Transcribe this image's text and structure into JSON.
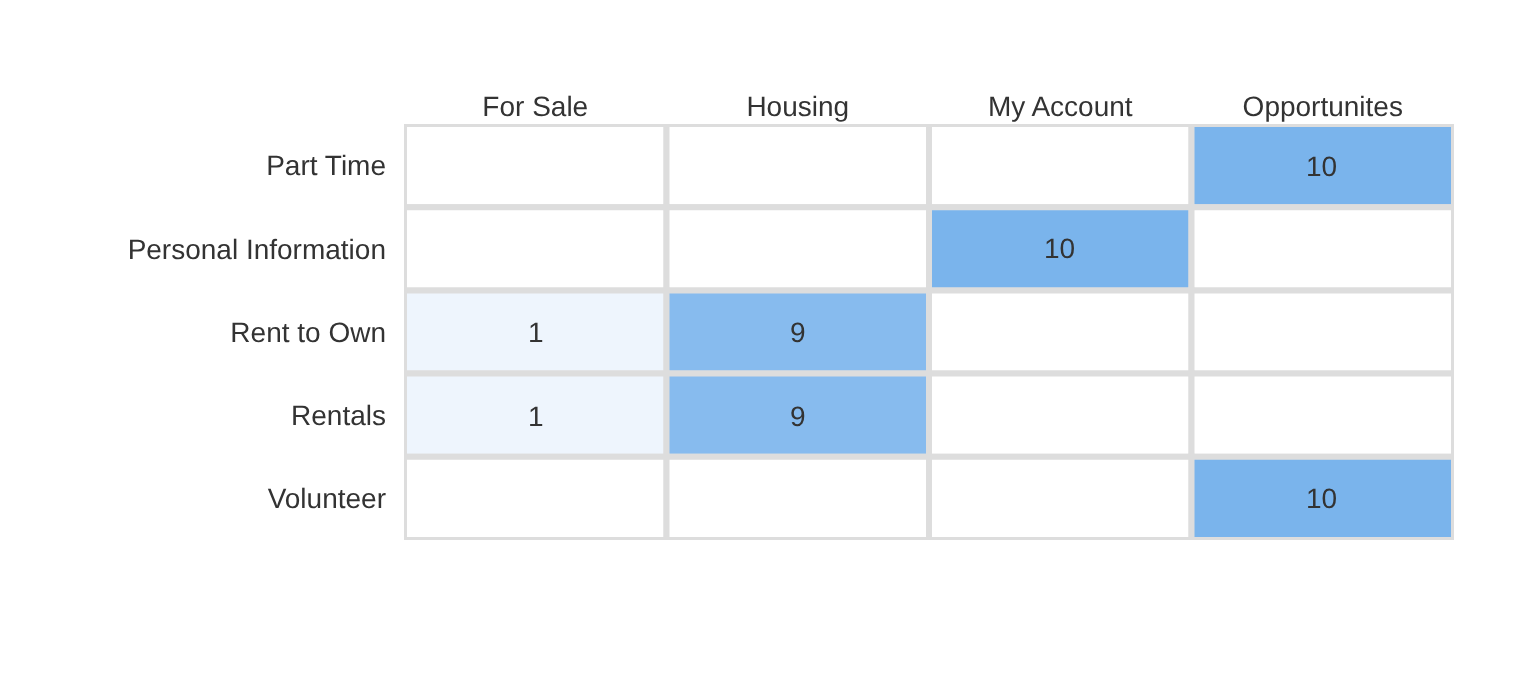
{
  "chart_data": {
    "type": "heatmap",
    "categories": [
      "For Sale",
      "Housing",
      "My Account",
      "Opportunites"
    ],
    "y_categories": [
      "Part Time",
      "Personal Information",
      "Rent to Own",
      "Rentals",
      "Volunteer"
    ],
    "cells": [
      [
        null,
        null,
        null,
        10
      ],
      [
        null,
        null,
        10,
        null
      ],
      [
        1,
        9,
        null,
        null
      ],
      [
        1,
        9,
        null,
        null
      ],
      [
        null,
        null,
        null,
        10
      ]
    ],
    "data_labels": true
  }
}
